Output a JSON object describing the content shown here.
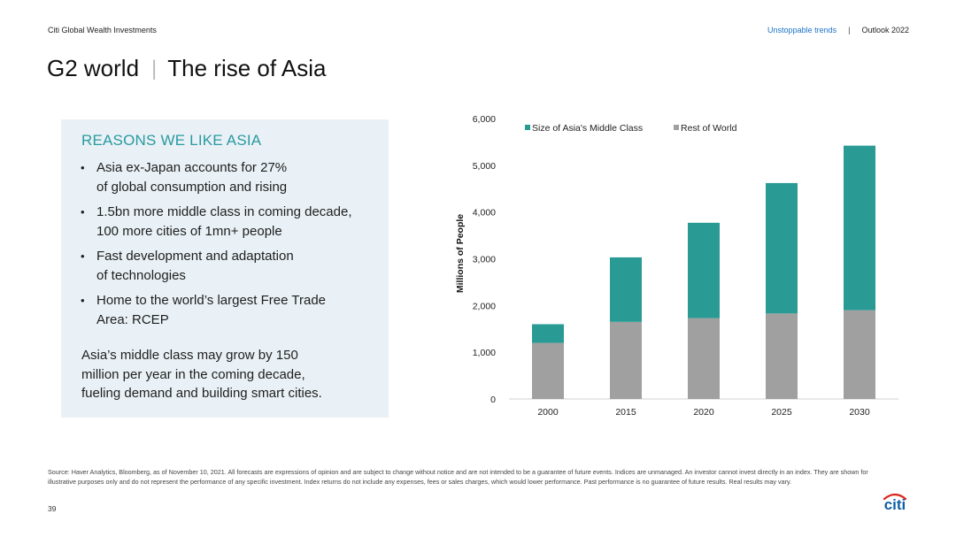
{
  "header": {
    "company": "Citi Global Wealth Investments",
    "section": "Unstoppable trends",
    "separator": "|",
    "doc": "Outlook 2022"
  },
  "title": {
    "left": "G2 world",
    "pipe": "|",
    "right": "The rise of Asia"
  },
  "panel": {
    "heading": "REASONS WE LIKE ASIA",
    "bullet_char": "•",
    "bullets": [
      {
        "line1": "Asia ex-Japan accounts for 27%",
        "line2": "of global consumption and rising"
      },
      {
        "line1": "1.5bn more middle class in coming decade,",
        "line2": "100 more cities of 1mn+ people"
      },
      {
        "line1": "Fast development and adaptation",
        "line2": "of technologies"
      },
      {
        "line1": "Home to the world’s largest Free Trade",
        "line2": "Area: RCEP"
      }
    ],
    "note_lines": [
      "Asia’s middle class may grow by 150",
      "million per year in the coming decade,",
      "fueling demand and building smart cities."
    ]
  },
  "chart_data": {
    "type": "bar",
    "stacked": true,
    "categories": [
      "2000",
      "2015",
      "2020",
      "2025",
      "2030"
    ],
    "series": [
      {
        "name": "Rest of World",
        "color": "#a0a0a0",
        "values": [
          1200,
          1650,
          1730,
          1830,
          1900
        ]
      },
      {
        "name": "Size of Asia's Middle Class",
        "color": "#2a9a94",
        "values": [
          400,
          1380,
          2040,
          2790,
          3520
        ]
      }
    ],
    "legend_order": [
      "Size of Asia's Middle Class",
      "Rest of World"
    ],
    "ylabel": "Millions of People",
    "ylim": [
      0,
      6000
    ],
    "yticks": [
      "0",
      "1,000",
      "2,000",
      "3,000",
      "4,000",
      "5,000",
      "6,000"
    ],
    "ytick_values": [
      0,
      1000,
      2000,
      3000,
      4000,
      5000,
      6000
    ],
    "legend_position": "top",
    "grid": false
  },
  "footnote": {
    "line1": "Source: Haver Analytics, Bloomberg, as of November 10, 2021. All forecasts are expressions of opinion and are subject to change without notice and are not intended to be a guarantee of future events. Indices are unmanaged. An investor cannot invest directly in an index. They are shown for",
    "line2": "illustrative purposes only and do not represent the performance of any specific investment. Index returns do not include any expenses, fees or sales charges, which would lower performance. Past performance is no guarantee of future results. Real results may vary."
  },
  "page_number": "39",
  "logo_text": "citi",
  "colors": {
    "accent": "#2a9aa0",
    "link": "#1a73c8",
    "logo_arc": "#d9261c",
    "logo_text": "#0f5fa8"
  }
}
